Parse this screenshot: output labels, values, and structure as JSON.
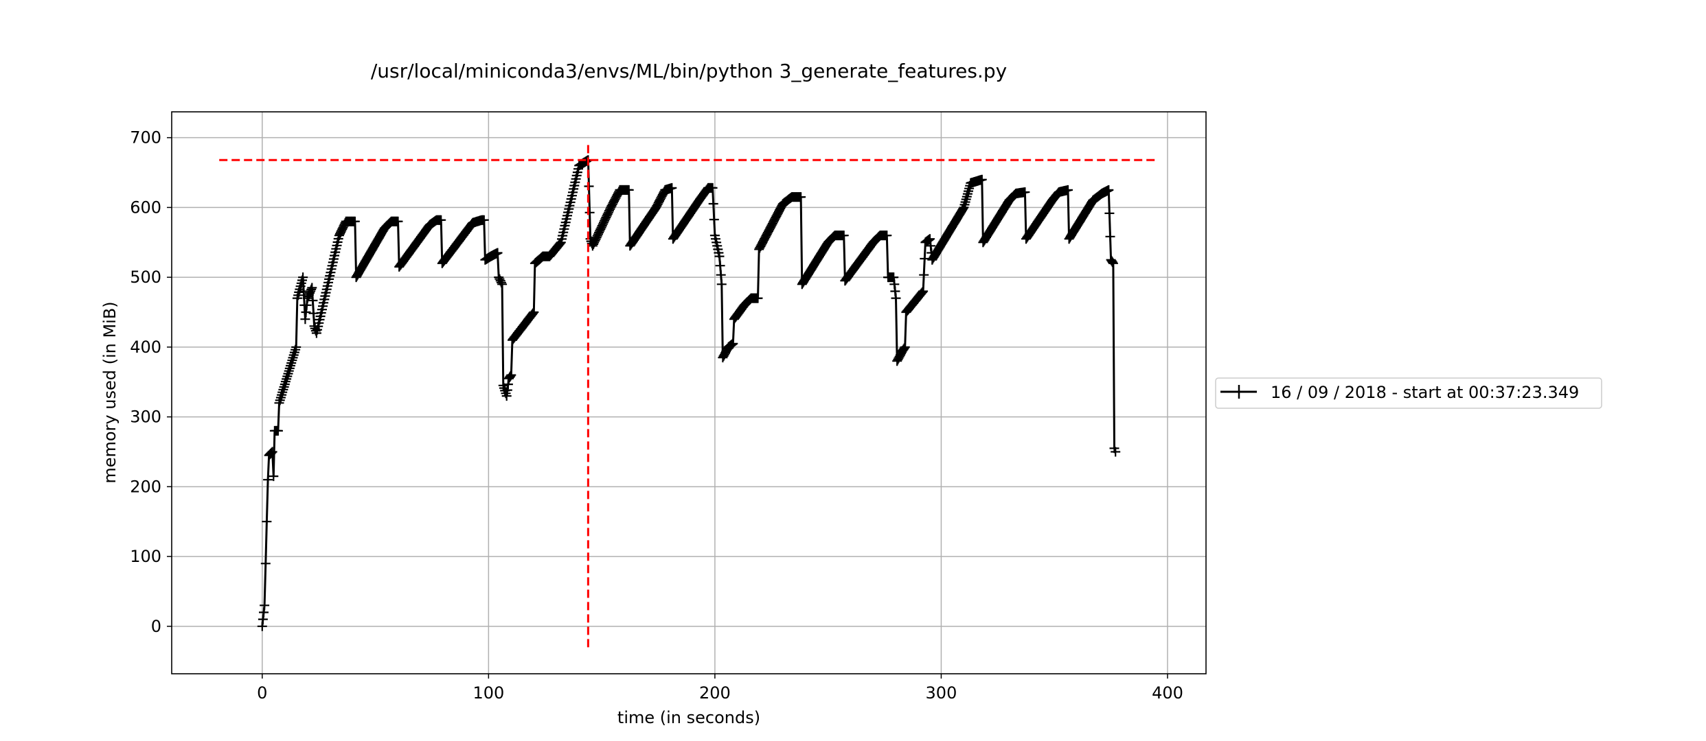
{
  "chart_data": {
    "type": "line",
    "title": "/usr/local/miniconda3/envs/ML/bin/python 3_generate_features.py",
    "xlabel": "time (in seconds)",
    "ylabel": "memory used (in MiB)",
    "xlim": [
      -40,
      417
    ],
    "ylim": [
      -68,
      737
    ],
    "xticks": [
      0,
      100,
      200,
      300,
      400
    ],
    "yticks": [
      0,
      100,
      200,
      300,
      400,
      500,
      600,
      700
    ],
    "grid": true,
    "legend_position": "outside-right",
    "series": [
      {
        "name": "16 / 09 / 2018 - start at 00:37:23.349",
        "color": "#000000",
        "marker": "+",
        "anchors": [
          [
            0,
            0
          ],
          [
            1,
            30
          ],
          [
            1.5,
            90
          ],
          [
            2,
            150
          ],
          [
            2.5,
            210
          ],
          [
            3,
            245
          ],
          [
            4.5,
            250
          ],
          [
            5,
            215
          ],
          [
            5.5,
            280
          ],
          [
            7,
            280
          ],
          [
            7.5,
            320
          ],
          [
            15,
            400
          ],
          [
            15.5,
            470
          ],
          [
            18,
            500
          ],
          [
            19,
            440
          ],
          [
            20,
            470
          ],
          [
            22,
            485
          ],
          [
            23,
            430
          ],
          [
            24,
            420
          ],
          [
            34,
            560
          ],
          [
            37,
            580
          ],
          [
            41,
            580
          ],
          [
            41.5,
            500
          ],
          [
            54,
            570
          ],
          [
            57,
            580
          ],
          [
            60,
            580
          ],
          [
            60.5,
            515
          ],
          [
            74,
            575
          ],
          [
            77,
            582
          ],
          [
            79,
            582
          ],
          [
            79.5,
            520
          ],
          [
            93,
            578
          ],
          [
            97,
            582
          ],
          [
            98,
            582
          ],
          [
            98.5,
            525
          ],
          [
            101,
            530
          ],
          [
            104,
            535
          ],
          [
            104.5,
            500
          ],
          [
            106,
            490
          ],
          [
            106.5,
            345
          ],
          [
            108,
            330
          ],
          [
            109,
            355
          ],
          [
            110,
            360
          ],
          [
            110.5,
            410
          ],
          [
            120,
            450
          ],
          [
            120.5,
            520
          ],
          [
            124,
            530
          ],
          [
            127,
            530
          ],
          [
            132,
            550
          ],
          [
            140,
            660
          ],
          [
            144,
            668
          ],
          [
            145,
            555
          ],
          [
            146,
            545
          ],
          [
            154,
            600
          ],
          [
            158,
            625
          ],
          [
            162,
            625
          ],
          [
            162.5,
            545
          ],
          [
            174,
            600
          ],
          [
            178,
            625
          ],
          [
            181,
            628
          ],
          [
            181.5,
            555
          ],
          [
            193,
            610
          ],
          [
            197,
            628
          ],
          [
            199,
            628
          ],
          [
            200,
            560
          ],
          [
            202,
            530
          ],
          [
            203,
            490
          ],
          [
            203.5,
            385
          ],
          [
            206,
            400
          ],
          [
            208,
            405
          ],
          [
            208.5,
            440
          ],
          [
            213,
            460
          ],
          [
            216,
            470
          ],
          [
            219,
            470
          ],
          [
            219.5,
            540
          ],
          [
            230,
            605
          ],
          [
            234,
            615
          ],
          [
            238,
            615
          ],
          [
            238.5,
            490
          ],
          [
            250,
            550
          ],
          [
            253,
            560
          ],
          [
            257,
            560
          ],
          [
            257.5,
            495
          ],
          [
            270,
            550
          ],
          [
            273,
            560
          ],
          [
            276,
            560
          ],
          [
            276.5,
            500
          ],
          [
            279,
            500
          ],
          [
            280,
            470
          ],
          [
            280.5,
            380
          ],
          [
            283,
            395
          ],
          [
            284,
            400
          ],
          [
            284.5,
            450
          ],
          [
            292,
            480
          ],
          [
            293,
            550
          ],
          [
            295,
            555
          ],
          [
            296,
            525
          ],
          [
            310,
            600
          ],
          [
            313,
            635
          ],
          [
            318,
            640
          ],
          [
            318.5,
            550
          ],
          [
            330,
            610
          ],
          [
            333,
            620
          ],
          [
            337,
            622
          ],
          [
            337.5,
            555
          ],
          [
            349,
            610
          ],
          [
            352,
            622
          ],
          [
            356,
            625
          ],
          [
            356.5,
            555
          ],
          [
            367,
            610
          ],
          [
            371,
            620
          ],
          [
            374,
            625
          ],
          [
            375,
            525
          ],
          [
            376,
            520
          ],
          [
            376.5,
            255
          ],
          [
            377,
            250
          ]
        ]
      }
    ],
    "reference_lines": [
      {
        "orientation": "horizontal",
        "value": 668,
        "from": -19,
        "to": 395,
        "color": "#ff0000",
        "style": "dashed"
      },
      {
        "orientation": "vertical",
        "value": 144,
        "from": -30,
        "to": 695,
        "color": "#ff0000",
        "style": "dashed"
      }
    ]
  }
}
